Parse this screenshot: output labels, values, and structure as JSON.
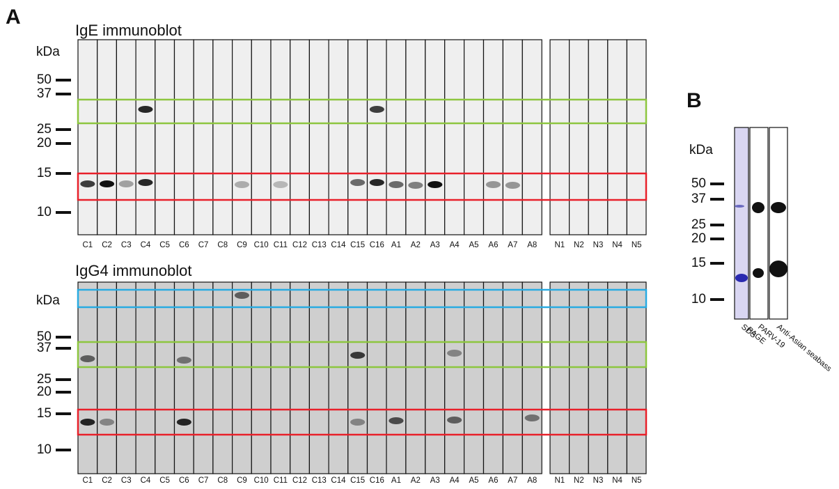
{
  "panel_a": {
    "label": "A",
    "blots": [
      {
        "title": "IgE immunoblot",
        "unit": "kDa",
        "markers": [
          "50",
          "37",
          "25",
          "20",
          "15",
          "10"
        ],
        "lanes": [
          "C1",
          "C2",
          "C3",
          "C4",
          "C5",
          "C6",
          "C7",
          "C8",
          "C9",
          "C10",
          "C11",
          "C12",
          "C13",
          "C14",
          "C15",
          "C16",
          "A1",
          "A2",
          "A3",
          "A4",
          "A5",
          "A6",
          "A7",
          "A8",
          "N1",
          "N2",
          "N3",
          "N4",
          "N5"
        ]
      },
      {
        "title": "IgG4 immunoblot",
        "unit": "kDa",
        "markers": [
          "50",
          "37",
          "25",
          "20",
          "15",
          "10"
        ],
        "lanes": [
          "C1",
          "C2",
          "C3",
          "C4",
          "C5",
          "C6",
          "C7",
          "C8",
          "C9",
          "C10",
          "C11",
          "C12",
          "C13",
          "C14",
          "C15",
          "C16",
          "A1",
          "A2",
          "A3",
          "A4",
          "A5",
          "A6",
          "A7",
          "A8",
          "N1",
          "N2",
          "N3",
          "N4",
          "N5"
        ]
      }
    ]
  },
  "panel_b": {
    "label": "B",
    "unit": "kDa",
    "markers": [
      "50",
      "37",
      "25",
      "20",
      "15",
      "10"
    ],
    "lanes": [
      {
        "lines": [
          "SDS",
          "PAGE"
        ]
      },
      {
        "lines": [
          "PARV-19"
        ]
      },
      {
        "lines": [
          "Anti-Asian  seabass"
        ]
      }
    ]
  }
}
